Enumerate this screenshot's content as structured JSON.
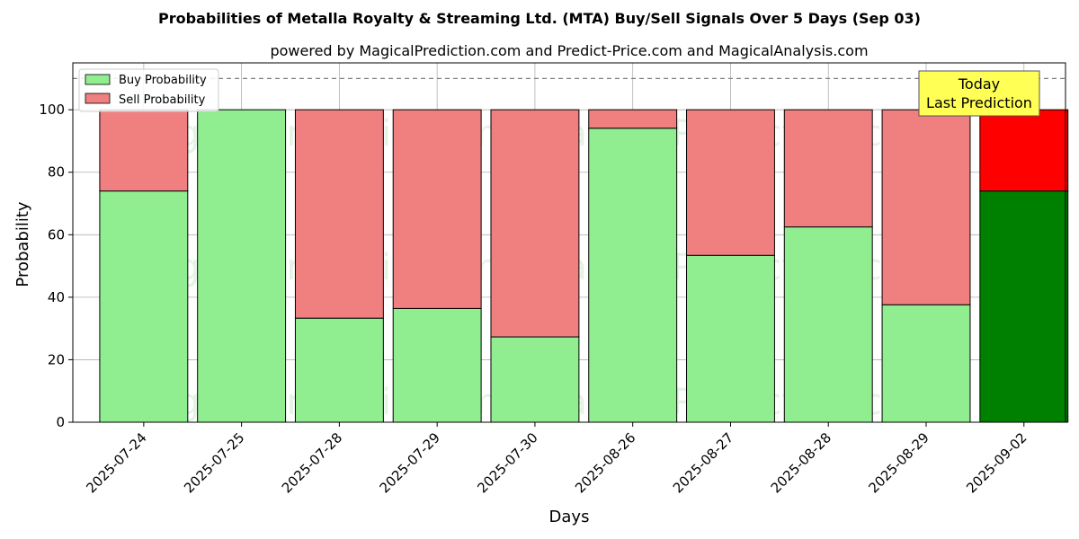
{
  "chart_data": {
    "type": "bar",
    "stacked": true,
    "title": "Probabilities of Metalla Royalty & Streaming Ltd. (MTA) Buy/Sell Signals Over 5 Days (Sep 03)",
    "subtitle": "powered by MagicalPrediction.com and Predict-Price.com and MagicalAnalysis.com",
    "xlabel": "Days",
    "ylabel": "Probability",
    "ylim": [
      0,
      115
    ],
    "yticks": [
      0,
      20,
      40,
      60,
      80,
      100
    ],
    "grid": true,
    "legend_position": "top-left",
    "reference_line": 110,
    "categories": [
      "2025-07-24",
      "2025-07-25",
      "2025-07-28",
      "2025-07-29",
      "2025-07-30",
      "2025-08-26",
      "2025-08-27",
      "2025-08-28",
      "2025-08-29",
      "2025-09-02"
    ],
    "series": [
      {
        "name": "Buy Probability",
        "color": "#90ee90",
        "values": [
          74,
          100,
          33.3,
          36.4,
          27.3,
          94.1,
          53.4,
          62.5,
          37.6,
          74
        ]
      },
      {
        "name": "Sell Probability",
        "color": "#f08080",
        "values": [
          26,
          0,
          66.7,
          63.6,
          72.7,
          5.9,
          46.6,
          37.5,
          62.4,
          26
        ]
      }
    ],
    "highlight": {
      "index": 9,
      "buy_color": "#008000",
      "sell_color": "#ff0000"
    },
    "annotation": {
      "line1": "Today",
      "line2": "Last Prediction",
      "background": "#ffff55"
    },
    "watermarks": [
      "MagicalAnalysis.com",
      "MagicalPrediction.com"
    ]
  }
}
